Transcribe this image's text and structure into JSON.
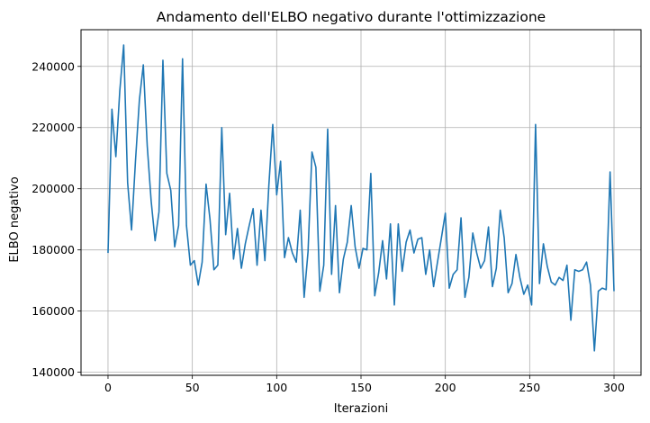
{
  "chart_data": {
    "type": "line",
    "title": "Andamento dell'ELBO negativo durante l'ottimizzazione",
    "xlabel": "Iterazioni",
    "ylabel": "ELBO negativo",
    "xlim": [
      -16,
      316
    ],
    "ylim": [
      139000,
      252000
    ],
    "xticks": [
      0,
      50,
      100,
      150,
      200,
      250,
      300
    ],
    "yticks": [
      140000,
      160000,
      180000,
      200000,
      220000,
      240000
    ],
    "grid": true,
    "line_color": "#1f77b4",
    "series": [
      {
        "values": [
          179000,
          226000,
          210500,
          232000,
          247000,
          202000,
          186500,
          209000,
          229000,
          240500,
          214000,
          196000,
          183000,
          192500,
          242000,
          205000,
          199500,
          181000,
          188000,
          242500,
          188000,
          175000,
          176500,
          168500,
          176000,
          201500,
          190000,
          173500,
          175000,
          220000,
          185000,
          198500,
          177000,
          187000,
          174000,
          182000,
          188000,
          193500,
          175000,
          193000,
          176500,
          201000,
          221000,
          198000,
          209000,
          177500,
          184000,
          179000,
          176000,
          193000,
          164500,
          179500,
          212000,
          207000,
          166500,
          175000,
          219500,
          172000,
          194500,
          166000,
          177000,
          182500,
          194500,
          181000,
          174000,
          180500,
          180000,
          205000,
          165000,
          172500,
          183000,
          170500,
          188500,
          162000,
          188500,
          173000,
          182500,
          186500,
          179000,
          183500,
          184000,
          172000,
          180000,
          168000,
          176000,
          184000,
          192000,
          167500,
          172000,
          173500,
          190500,
          164500,
          171000,
          185500,
          179000,
          174000,
          176500,
          187500,
          168000,
          174000,
          193000,
          184000,
          166000,
          169000,
          178500,
          171000,
          165500,
          168500,
          162000,
          221000,
          169000,
          182000,
          174500,
          169500,
          168500,
          171000,
          170000,
          175000,
          157000,
          173500,
          173000,
          173500,
          176000,
          168500,
          147000,
          166500,
          167500,
          167000,
          205500,
          166500
        ]
      }
    ]
  }
}
